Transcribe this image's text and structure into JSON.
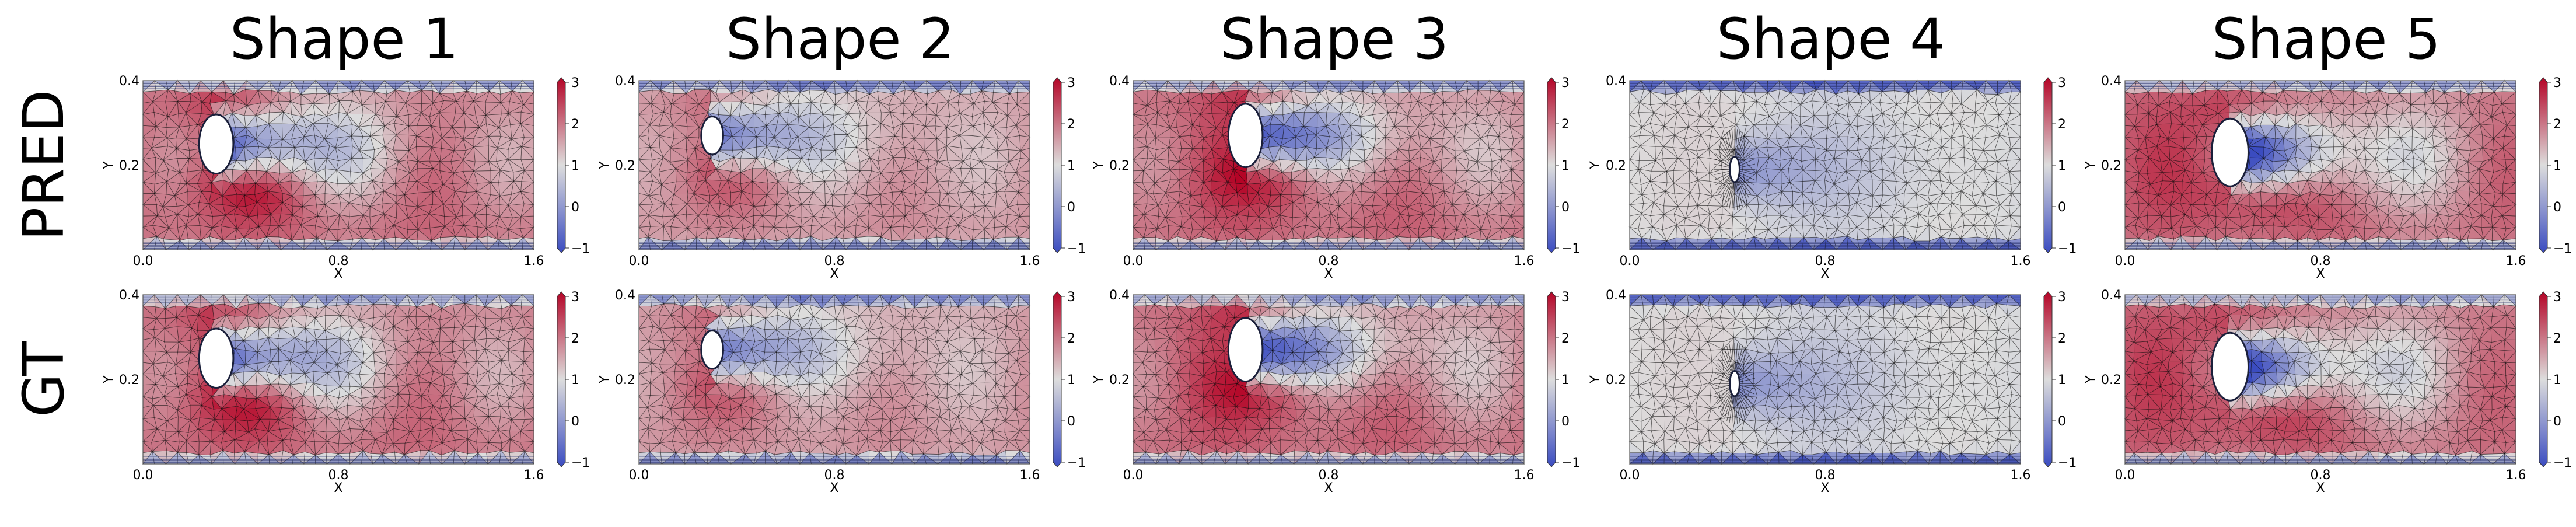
{
  "figure": {
    "row_labels": [
      "PRED",
      "GT"
    ],
    "column_titles": [
      "Shape 1",
      "Shape 2",
      "Shape 3",
      "Shape 4",
      "Shape 5"
    ]
  },
  "chart_data": {
    "type": "heatmap",
    "colormap": "coolwarm",
    "colormap_colors": [
      "#3b4cc0",
      "#dddddd",
      "#b40426"
    ],
    "mesh_color": "#000000",
    "rows": [
      "PRED",
      "GT"
    ],
    "columns": [
      "Shape 1",
      "Shape 2",
      "Shape 3",
      "Shape 4",
      "Shape 5"
    ],
    "xlabel": "X",
    "ylabel": "Y",
    "xlim": [
      0.0,
      1.6
    ],
    "ylim": [
      0.0,
      0.4
    ],
    "xticks": [
      "0.0",
      "0.8",
      "1.6"
    ],
    "yticks": [
      "0.2",
      "0.4"
    ],
    "colorbar": {
      "range": [
        -1,
        3
      ],
      "ticks": [
        "3",
        "2",
        "1",
        "0",
        "−1"
      ]
    },
    "obstacles": [
      {
        "shape": "Shape 1",
        "center": [
          0.3,
          0.25
        ],
        "width": 0.14,
        "height": 0.14
      },
      {
        "shape": "Shape 2",
        "center": [
          0.3,
          0.27
        ],
        "width": 0.09,
        "height": 0.09
      },
      {
        "shape": "Shape 3",
        "center": [
          0.46,
          0.27
        ],
        "width": 0.14,
        "height": 0.15
      },
      {
        "shape": "Shape 4",
        "center": [
          0.43,
          0.19
        ],
        "width": 0.04,
        "height": 0.06
      },
      {
        "shape": "Shape 5",
        "center": [
          0.43,
          0.23
        ],
        "width": 0.15,
        "height": 0.16
      }
    ]
  }
}
